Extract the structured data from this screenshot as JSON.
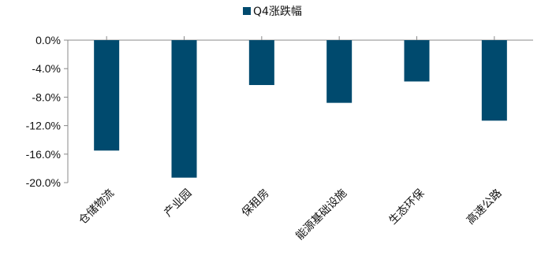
{
  "chart_data": {
    "type": "bar",
    "title": "",
    "xlabel": "",
    "ylabel": "",
    "categories": [
      "仓储物流",
      "产业园",
      "保租房",
      "能源基础设施",
      "生态环保",
      "高速公路"
    ],
    "series": [
      {
        "name": "Q4涨跌幅",
        "values": [
          -15.5,
          -19.3,
          -6.3,
          -8.8,
          -5.8,
          -11.3
        ]
      }
    ],
    "ylim": [
      -20,
      0
    ],
    "yticks": [
      0,
      -4,
      -8,
      -12,
      -16,
      -20
    ],
    "ytick_labels": [
      "0.0%",
      "-4.0%",
      "-8.0%",
      "-12.0%",
      "-16.0%",
      "-20.0%"
    ],
    "legend_position": "top-center",
    "grid": false,
    "colors": {
      "bar": "#004A6E",
      "axis": "#888888",
      "text": "#111111"
    }
  }
}
